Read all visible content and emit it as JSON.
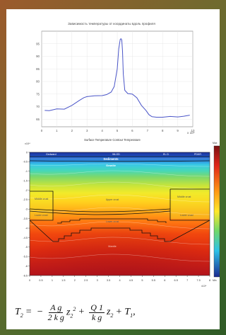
{
  "figure": {
    "top_title": "Зависимость температуры от координаты вдоль профиля",
    "bottom_title": "Surface Temperature  Contour Temperature",
    "equation": {
      "lhs": "T",
      "lhs_sub": "2",
      "eq": "=",
      "minus": "−",
      "frac1_num": "A g",
      "frac1_den": "2 k g",
      "term1": "z",
      "term1_sub": "2",
      "term1_sup": "2",
      "plus1": "+",
      "frac2_num": "Q 1",
      "frac2_den": "k g",
      "term2": "z",
      "term2_sub": "2",
      "plus2": "+",
      "term3": "T",
      "term3_sub": "1",
      "tail": ","
    }
  },
  "chart_data": [
    {
      "type": "line",
      "title": "Зависимость температуры от координаты вдоль профиля",
      "x_exponent_label": "x 10⁴",
      "xlim": [
        0,
        10
      ],
      "ylim": [
        62,
        100
      ],
      "x_ticks": [
        "0",
        "1",
        "2",
        "3",
        "4",
        "5",
        "6",
        "7",
        "8",
        "9",
        "10"
      ],
      "y_ticks": [
        "65",
        "70",
        "75",
        "80",
        "85",
        "90",
        "95"
      ],
      "color": "#4a55c8",
      "x": [
        0.2,
        0.5,
        1.0,
        1.5,
        2.0,
        2.5,
        2.8,
        3.0,
        3.5,
        4.0,
        4.3,
        4.6,
        4.8,
        5.0,
        5.1,
        5.2,
        5.25,
        5.3,
        5.35,
        5.4,
        5.5,
        5.7,
        6.0,
        6.3,
        6.6,
        6.9,
        7.1,
        7.3,
        7.6,
        8.0,
        8.5,
        9.0,
        9.4,
        9.8
      ],
      "y": [
        68.5,
        68.4,
        69.1,
        69.0,
        70.5,
        72.5,
        73.6,
        74.0,
        74.3,
        74.4,
        74.8,
        75.8,
        78.0,
        85.0,
        93.0,
        96.8,
        97.0,
        96.5,
        92.0,
        83.0,
        76.5,
        75.2,
        75.0,
        73.5,
        70.5,
        68.5,
        66.8,
        66.0,
        65.8,
        65.8,
        66.1,
        65.9,
        66.2,
        66.6
      ]
    },
    {
      "type": "heatmap",
      "title": "Surface Temperature  Contour Temperature",
      "y_exponent_label": "x10⁴",
      "x_exponent_label": "x10⁴",
      "xlim": [
        0,
        8
      ],
      "ylim": [
        -6.5,
        0
      ],
      "x_ticks": [
        "0",
        "0.5",
        "1",
        "1.5",
        "2",
        "2.5",
        "3",
        "3.5",
        "4",
        "4.5",
        "5",
        "5.5",
        "6",
        "6.5",
        "7",
        "7.5",
        "8"
      ],
      "y_ticks": [
        "0",
        "-0.5",
        "-1",
        "-1.5",
        "-2",
        "-2.5",
        "-3",
        "-3.5",
        "-4",
        "-4.5",
        "-5",
        "-5.5",
        "-6",
        "-6.5"
      ],
      "top_labels": [
        "Gedward",
        "WLGD",
        "EL D",
        "PDKR"
      ],
      "layer_labels": [
        "Sediments",
        "Granite",
        "Middle crust",
        "Middle crust",
        "Upper crust",
        "Lower crust",
        "Lower crust",
        "Lower crust",
        "Mantle"
      ],
      "colorbar_top_label": "Max",
      "colorbar_bottom_label": "Min"
    }
  ]
}
